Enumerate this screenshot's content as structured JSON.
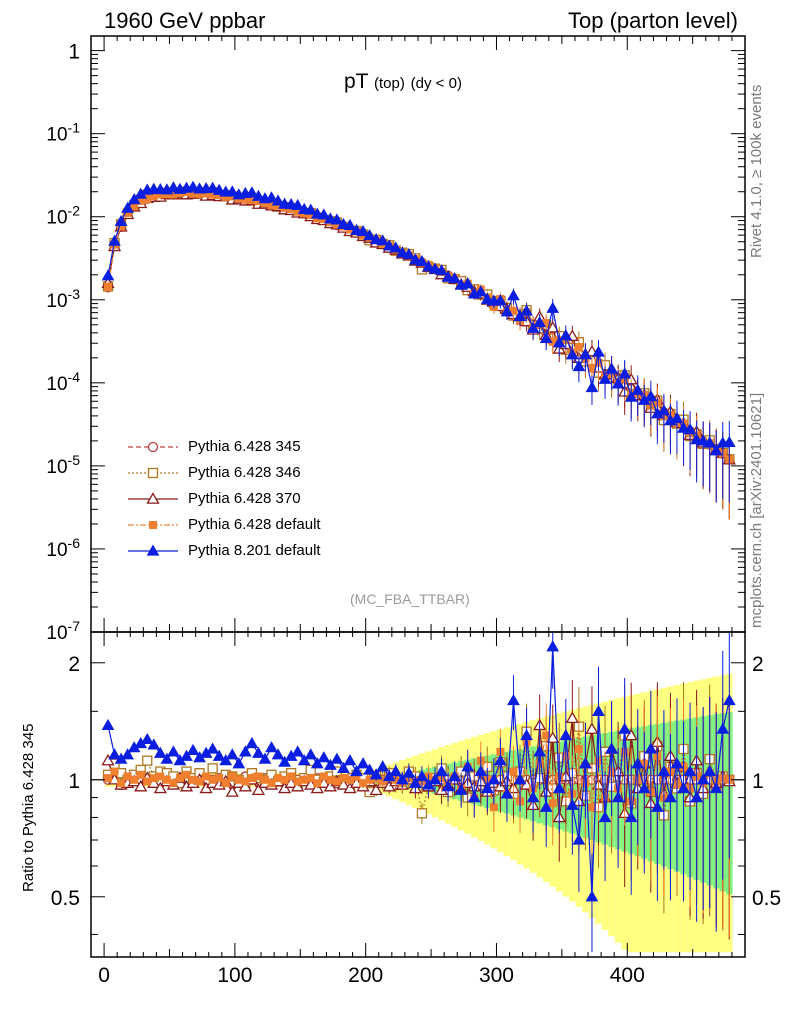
{
  "header": {
    "left": "1960 GeV ppbar",
    "right": "Top (parton level)"
  },
  "side_labels": {
    "rivet": "Rivet 4.1.0, ≥ 100k events",
    "mcplots": "mcplots.cern.ch [arXiv:2401.10621]"
  },
  "plot_title": {
    "main": "pT",
    "sub": "(top)",
    "cut": "(dy < 0)"
  },
  "watermark": "(MC_FBA_TTBAR)",
  "colors": {
    "p345": "#b04040",
    "p346": "#b07820",
    "p370": "#8b1a1a",
    "p6def": "#f08030",
    "p8def": "#0a1ee0",
    "band_yellow": "#ffff80",
    "band_green": "#80f080"
  },
  "chart_data": [
    {
      "type": "line",
      "title": "pT (top) (dy < 0)",
      "xlabel": "",
      "ylabel": "",
      "yscale": "log",
      "xlim": [
        -10,
        490
      ],
      "ylim": [
        1e-07,
        1.5
      ],
      "ytick_labels": [
        "1",
        "10^-1",
        "10^-2",
        "10^-3",
        "10^-4",
        "10^-5",
        "10^-6",
        "10^-7"
      ],
      "legend_position": "bottom-left",
      "legend": [
        "Pythia 6.428 345",
        "Pythia 6.428 346",
        "Pythia 6.428 370",
        "Pythia 6.428 default",
        "Pythia 8.201 default"
      ],
      "reference_x": [
        3,
        8,
        13,
        18,
        23,
        28,
        33,
        38,
        43,
        48,
        53,
        58,
        63,
        68,
        73,
        78,
        83,
        88,
        93,
        98,
        103,
        108,
        113,
        118,
        123,
        128,
        133,
        138,
        143,
        148,
        153,
        158,
        163,
        168,
        173,
        178,
        183,
        188,
        193,
        198,
        203,
        208,
        213,
        218,
        223,
        228,
        233,
        238,
        243,
        248,
        253,
        258,
        263,
        268,
        273,
        278,
        283,
        288,
        293,
        298,
        303,
        308,
        313,
        318,
        323,
        328,
        333,
        338,
        343,
        348,
        353,
        358,
        363,
        368,
        373,
        378,
        383,
        388,
        393,
        398,
        403,
        408,
        413,
        418,
        423,
        428,
        433,
        438,
        443,
        448,
        453,
        458,
        463,
        468,
        473,
        478
      ],
      "reference_y": [
        0.00141,
        0.00439,
        0.00778,
        0.0109,
        0.0133,
        0.0151,
        0.0165,
        0.0175,
        0.0182,
        0.0187,
        0.019,
        0.0191,
        0.0192,
        0.0191,
        0.019,
        0.0187,
        0.0184,
        0.0181,
        0.0177,
        0.0172,
        0.0167,
        0.0162,
        0.0157,
        0.0151,
        0.0146,
        0.014,
        0.0134,
        0.0128,
        0.0122,
        0.0116,
        0.011,
        0.0104,
        0.00979,
        0.00922,
        0.00865,
        0.0081,
        0.00755,
        0.00702,
        0.00652,
        0.00604,
        0.00559,
        0.00516,
        0.00475,
        0.00437,
        0.00402,
        0.00369,
        0.00338,
        0.00309,
        0.00283,
        0.00258,
        0.00235,
        0.00214,
        0.00195,
        0.00177,
        0.0016,
        0.00145,
        0.00131,
        0.00119,
        0.00107,
        0.000965,
        0.000868,
        0.000781,
        0.000701,
        0.000629,
        0.000564,
        0.000505,
        0.000451,
        0.000403,
        0.000359,
        0.00032,
        0.000285,
        0.000253,
        0.000225,
        0.000199,
        0.000176,
        0.000156,
        0.000138,
        0.000122,
        0.000108,
        9.5e-05,
        8.4e-05,
        7.4e-05,
        6.5e-05,
        5.7e-05,
        5e-05,
        4.4e-05,
        3.9e-05,
        3.4e-05,
        3e-05,
        2.6e-05,
        2.3e-05,
        2e-05,
        1.8e-05,
        1.6e-05,
        1.4e-05,
        1.2e-05
      ],
      "series": [
        {
          "name": "Pythia 6.428 345",
          "marker": "open-circle",
          "style": "dashed",
          "ratio": [
            1.0,
            1.02,
            0.97,
            1.0,
            1.01,
            0.99,
            1.0,
            1.02,
            0.98,
            1.0,
            1.01,
            0.99,
            1.0,
            1.0,
            1.02,
            0.99,
            1.0,
            1.01,
            1.0,
            0.98,
            1.0,
            1.02,
            1.0,
            0.99,
            1.01,
            1.0,
            1.0,
            0.98,
            1.02,
            1.0,
            1.0,
            0.99,
            1.01,
            1.0,
            1.0,
            0.98,
            1.0,
            1.01,
            1.0,
            1.0,
            0.99,
            1.02,
            1.0,
            1.0,
            0.98,
            1.0,
            1.01,
            1.0,
            0.99,
            1.0,
            1.0,
            1.0,
            1.0,
            1.0,
            1.0,
            1.0,
            1.0,
            1.0,
            1.0,
            1.0,
            1.0,
            1.0,
            1.0,
            1.0,
            1.0,
            1.0,
            1.0,
            1.0,
            1.0,
            1.0,
            1.0,
            1.0,
            1.0,
            1.0,
            1.0,
            1.0,
            1.0,
            1.0,
            1.0,
            1.0,
            1.0,
            1.0,
            1.0,
            1.0,
            1.0,
            1.0,
            1.0,
            1.0,
            1.0,
            1.0,
            1.0,
            1.0,
            1.0,
            1.0,
            1.0,
            1.0
          ]
        },
        {
          "name": "Pythia 6.428 346",
          "marker": "open-square",
          "style": "dotted",
          "ratio": [
            1.03,
            1.1,
            1.04,
            1.0,
            1.03,
            1.06,
            1.12,
            1.02,
            1.05,
            1.04,
            1.02,
            0.98,
            1.05,
            1.01,
            1.04,
            1.0,
            1.07,
            0.99,
            1.03,
            1.02,
            1.0,
            0.97,
            1.04,
            1.01,
            1.0,
            1.03,
            0.99,
            1.02,
            1.04,
            0.98,
            1.01,
            1.06,
            1.0,
            0.99,
            1.02,
            1.05,
            1.0,
            0.97,
            1.03,
            1.01,
            0.93,
            1.02,
            0.99,
            1.04,
            0.97,
            1.0,
            1.05,
            1.02,
            0.82,
            0.96,
            1.01,
            1.07,
            0.93,
            1.0,
            1.05,
            0.9,
            1.02,
            0.97,
            1.08,
            0.94,
            1.11,
            1.02,
            0.92,
            1.05,
            1.33,
            0.98,
            1.01,
            1.22,
            0.95,
            1.14,
            0.88,
            1.04,
            1.37,
            0.91,
            1.07,
            0.85,
            1.18,
            0.96,
            1.02,
            1.3,
            0.87,
            1.0,
            1.15,
            0.93,
            1.22,
            0.81,
            1.08,
            0.95,
            1.2,
            0.88,
            1.04,
            0.92,
            1.13,
            0.97,
            1.02,
            1.0
          ]
        },
        {
          "name": "Pythia 6.428 370",
          "marker": "open-triangle",
          "style": "solid",
          "ratio": [
            1.12,
            1.0,
            0.97,
            0.98,
            0.99,
            0.96,
            1.01,
            0.98,
            0.95,
            0.99,
            0.97,
            1.01,
            0.96,
            0.98,
            1.0,
            0.95,
            0.98,
            0.97,
            0.99,
            0.93,
            0.98,
            0.96,
            1.0,
            0.94,
            0.98,
            0.97,
            0.99,
            0.95,
            0.98,
            0.96,
            0.99,
            0.97,
            0.95,
            0.98,
            0.96,
            0.99,
            0.97,
            0.95,
            0.98,
            0.96,
            0.99,
            0.94,
            0.98,
            0.96,
            0.99,
            0.97,
            1.0,
            0.95,
            0.98,
            0.96,
            0.99,
            0.94,
            0.97,
            1.0,
            0.95,
            0.98,
            0.96,
            0.99,
            0.93,
            0.98,
            0.96,
            0.99,
            0.95,
            1.0,
            0.97,
            0.86,
            1.38,
            0.93,
            1.28,
            0.8,
            1.02,
            1.44,
            0.88,
            1.1,
            1.35,
            0.97,
            0.9,
            1.2,
            1.05,
            0.82,
            1.3,
            0.95,
            1.1,
            0.87,
            1.25,
            0.92,
            1.15,
            0.98,
            1.08,
            0.9,
            1.12,
            0.95,
            1.05,
            0.98,
            1.02,
            0.99
          ]
        },
        {
          "name": "Pythia 6.428 default",
          "marker": "filled-square",
          "style": "dashdot",
          "ratio": [
            1.01,
            1.05,
            0.98,
            1.02,
            1.0,
            1.03,
            0.99,
            1.01,
            1.02,
            1.0,
            0.98,
            1.01,
            1.03,
            1.0,
            0.99,
            1.02,
            1.0,
            1.01,
            0.98,
            1.02,
            1.0,
            0.99,
            1.01,
            1.02,
            1.0,
            0.98,
            1.01,
            1.0,
            1.02,
            0.99,
            1.0,
            1.01,
            0.98,
            1.02,
            1.0,
            0.99,
            1.01,
            1.0,
            1.02,
            0.98,
            1.0,
            1.01,
            0.99,
            1.02,
            1.0,
            0.98,
            1.01,
            1.0,
            0.99,
            1.02,
            1.0,
            1.01,
            0.98,
            1.02,
            0.95,
            1.08,
            0.9,
            1.12,
            1.0,
            0.85,
            1.18,
            0.92,
            1.05,
            0.88,
            1.25,
            0.95,
            1.1,
            1.3,
            0.87,
            1.02,
            1.15,
            0.92,
            1.2,
            0.98,
            0.85,
            1.12,
            0.9,
            1.05,
            0.95,
            1.18,
            0.88,
            1.0,
            1.1,
            0.93,
            1.15,
            0.9,
            1.05,
            0.97,
            1.08,
            0.95,
            1.02,
            0.98,
            1.04,
            0.99,
            1.01,
            1.0
          ]
        },
        {
          "name": "Pythia 8.201 default",
          "marker": "filled-triangle",
          "style": "solid",
          "ratio": [
            1.38,
            1.16,
            1.13,
            1.16,
            1.21,
            1.24,
            1.27,
            1.23,
            1.17,
            1.13,
            1.18,
            1.12,
            1.15,
            1.19,
            1.14,
            1.17,
            1.2,
            1.15,
            1.12,
            1.16,
            1.1,
            1.18,
            1.24,
            1.17,
            1.13,
            1.21,
            1.16,
            1.11,
            1.15,
            1.18,
            1.12,
            1.16,
            1.1,
            1.14,
            1.09,
            1.13,
            1.07,
            1.12,
            1.05,
            1.1,
            1.06,
            1.03,
            1.08,
            1.02,
            1.05,
            1.0,
            1.04,
            0.98,
            1.02,
            0.97,
            1.0,
            1.05,
            0.96,
            1.02,
            0.94,
            1.08,
            0.9,
            1.05,
            0.95,
            1.0,
            1.12,
            0.92,
            1.6,
            1.0,
            1.3,
            0.9,
            1.18,
            0.85,
            2.2,
            0.95,
            1.3,
            0.86,
            0.7,
            1.1,
            0.5,
            1.5,
            0.8,
            1.2,
            0.9,
            1.35,
            0.8,
            1.1,
            0.95,
            1.2,
            0.85,
            1.05,
            0.9,
            1.1,
            0.95,
            1.05,
            0.9,
            1.0,
            1.05,
            0.95,
            1.35,
            1.6
          ]
        }
      ]
    },
    {
      "type": "line",
      "title": "",
      "xlabel": "",
      "ylabel": "Ratio to Pythia 6.428 345",
      "yscale": "log",
      "xlim": [
        -10,
        490
      ],
      "ylim": [
        0.35,
        2.4
      ],
      "xtick_labels": [
        "0",
        "100",
        "200",
        "300",
        "400"
      ],
      "ytick_labels": [
        "0.5",
        "1",
        "2"
      ],
      "bands": [
        "yellow band: reference uncertainty",
        "green band: statistical uncertainty"
      ]
    }
  ]
}
